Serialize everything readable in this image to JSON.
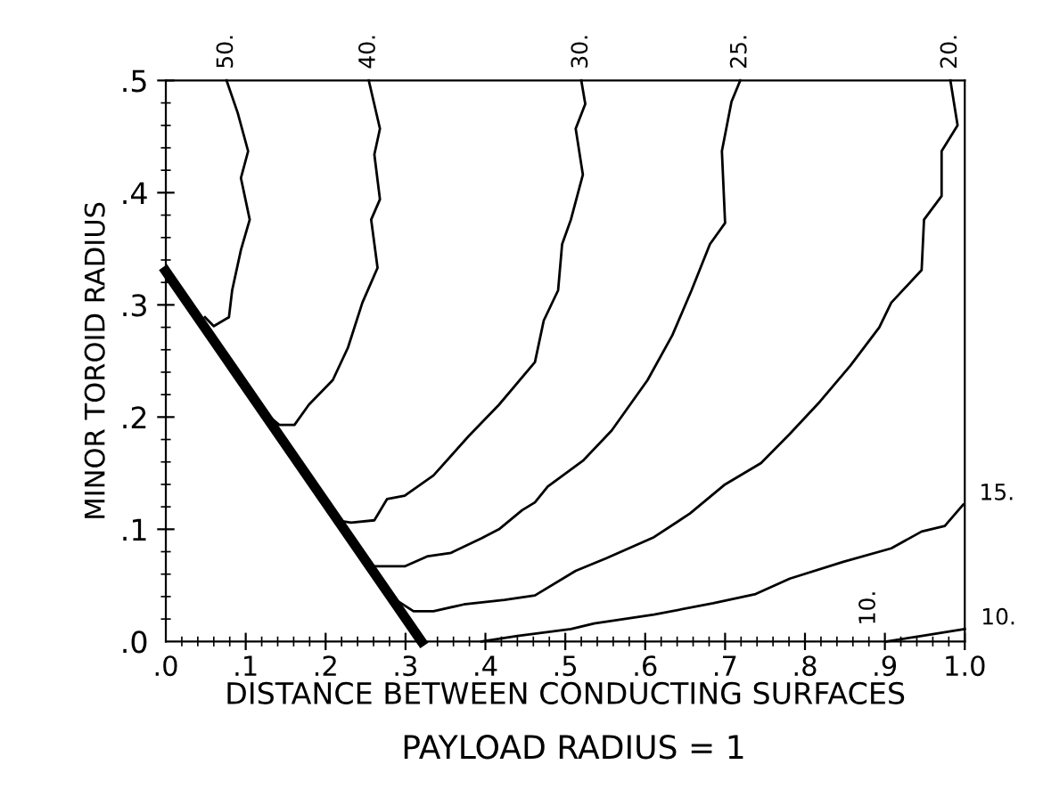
{
  "chart_data": {
    "type": "line",
    "xlabel": "DISTANCE BETWEEN CONDUCTING SURFACES",
    "ylabel": "MINOR TOROID RADIUS",
    "xlim": [
      0,
      1
    ],
    "ylim": [
      0,
      0.5
    ],
    "xticks": [
      {
        "value": 0,
        "label": ".0"
      },
      {
        "value": 0.1,
        "label": ".1"
      },
      {
        "value": 0.2,
        "label": ".2"
      },
      {
        "value": 0.3,
        "label": ".3"
      },
      {
        "value": 0.4,
        "label": ".4"
      },
      {
        "value": 0.5,
        "label": ".5"
      },
      {
        "value": 0.6,
        "label": ".6"
      },
      {
        "value": 0.7,
        "label": ".7"
      },
      {
        "value": 0.8,
        "label": ".8"
      },
      {
        "value": 0.9,
        "label": ".9"
      },
      {
        "value": 1.0,
        "label": "1.0"
      }
    ],
    "yticks": [
      {
        "value": 0,
        "label": ".0"
      },
      {
        "value": 0.1,
        "label": ".1"
      },
      {
        "value": 0.2,
        "label": ".2"
      },
      {
        "value": 0.3,
        "label": ".3"
      },
      {
        "value": 0.4,
        "label": ".4"
      },
      {
        "value": 0.5,
        "label": ".5"
      }
    ],
    "grid": false,
    "legend": false,
    "marker": "none",
    "line_style": "solid",
    "series": [
      {
        "name": "50.",
        "color": "#000000",
        "x": [
          0.049,
          0.06,
          0.079,
          0.083,
          0.094,
          0.105,
          0.094,
          0.103,
          0.09,
          0.076
        ],
        "values": [
          0.289,
          0.281,
          0.289,
          0.313,
          0.349,
          0.376,
          0.413,
          0.437,
          0.471,
          0.5
        ]
      },
      {
        "name": "40.",
        "color": "#000000",
        "x": [
          0.12,
          0.142,
          0.161,
          0.179,
          0.209,
          0.228,
          0.246,
          0.265,
          0.257,
          0.268,
          0.261,
          0.268,
          0.254
        ],
        "values": [
          0.206,
          0.193,
          0.193,
          0.211,
          0.233,
          0.262,
          0.302,
          0.333,
          0.376,
          0.394,
          0.434,
          0.457,
          0.5
        ]
      },
      {
        "name": "30.",
        "color": "#000000",
        "x": [
          0.212,
          0.232,
          0.261,
          0.277,
          0.299,
          0.335,
          0.379,
          0.417,
          0.462,
          0.473,
          0.491,
          0.496,
          0.507,
          0.522,
          0.513,
          0.525,
          0.52
        ],
        "values": [
          0.108,
          0.106,
          0.108,
          0.127,
          0.13,
          0.148,
          0.183,
          0.211,
          0.249,
          0.286,
          0.313,
          0.354,
          0.376,
          0.416,
          0.457,
          0.479,
          0.5
        ]
      },
      {
        "name": "25.",
        "color": "#000000",
        "x": [
          0.261,
          0.299,
          0.328,
          0.357,
          0.395,
          0.417,
          0.446,
          0.462,
          0.478,
          0.522,
          0.558,
          0.603,
          0.634,
          0.658,
          0.681,
          0.7,
          0.696,
          0.708,
          0.719
        ],
        "values": [
          0.067,
          0.067,
          0.076,
          0.079,
          0.092,
          0.1,
          0.117,
          0.124,
          0.138,
          0.161,
          0.188,
          0.233,
          0.273,
          0.313,
          0.354,
          0.373,
          0.437,
          0.481,
          0.5
        ]
      },
      {
        "name": "20.",
        "color": "#000000",
        "x": [
          0.288,
          0.31,
          0.335,
          0.373,
          0.424,
          0.462,
          0.513,
          0.551,
          0.611,
          0.656,
          0.7,
          0.745,
          0.781,
          0.819,
          0.857,
          0.893,
          0.908,
          0.946,
          0.949,
          0.971,
          0.971,
          0.991,
          0.982
        ],
        "values": [
          0.037,
          0.027,
          0.027,
          0.033,
          0.037,
          0.041,
          0.063,
          0.074,
          0.093,
          0.114,
          0.14,
          0.159,
          0.185,
          0.214,
          0.246,
          0.28,
          0.302,
          0.331,
          0.376,
          0.397,
          0.437,
          0.46,
          0.5
        ]
      },
      {
        "name": "15.",
        "color": "#000000",
        "x": [
          0.395,
          0.44,
          0.507,
          0.536,
          0.611,
          0.685,
          0.737,
          0.781,
          0.848,
          0.908,
          0.946,
          0.975,
          0.998
        ],
        "values": [
          0.0,
          0.005,
          0.011,
          0.016,
          0.024,
          0.034,
          0.042,
          0.056,
          0.071,
          0.083,
          0.098,
          0.103,
          0.122
        ]
      },
      {
        "name": "10.",
        "color": "#000000",
        "x": [
          0.902,
          0.946,
          1.0
        ],
        "values": [
          0.0,
          0.005,
          0.011
        ]
      },
      {
        "color": "#000000",
        "x": [
          0.0,
          0.32
        ],
        "values": [
          0.33,
          0.0
        ]
      }
    ],
    "annotations": [
      "10.",
      "PAYLOAD RADIUS = 1"
    ]
  }
}
